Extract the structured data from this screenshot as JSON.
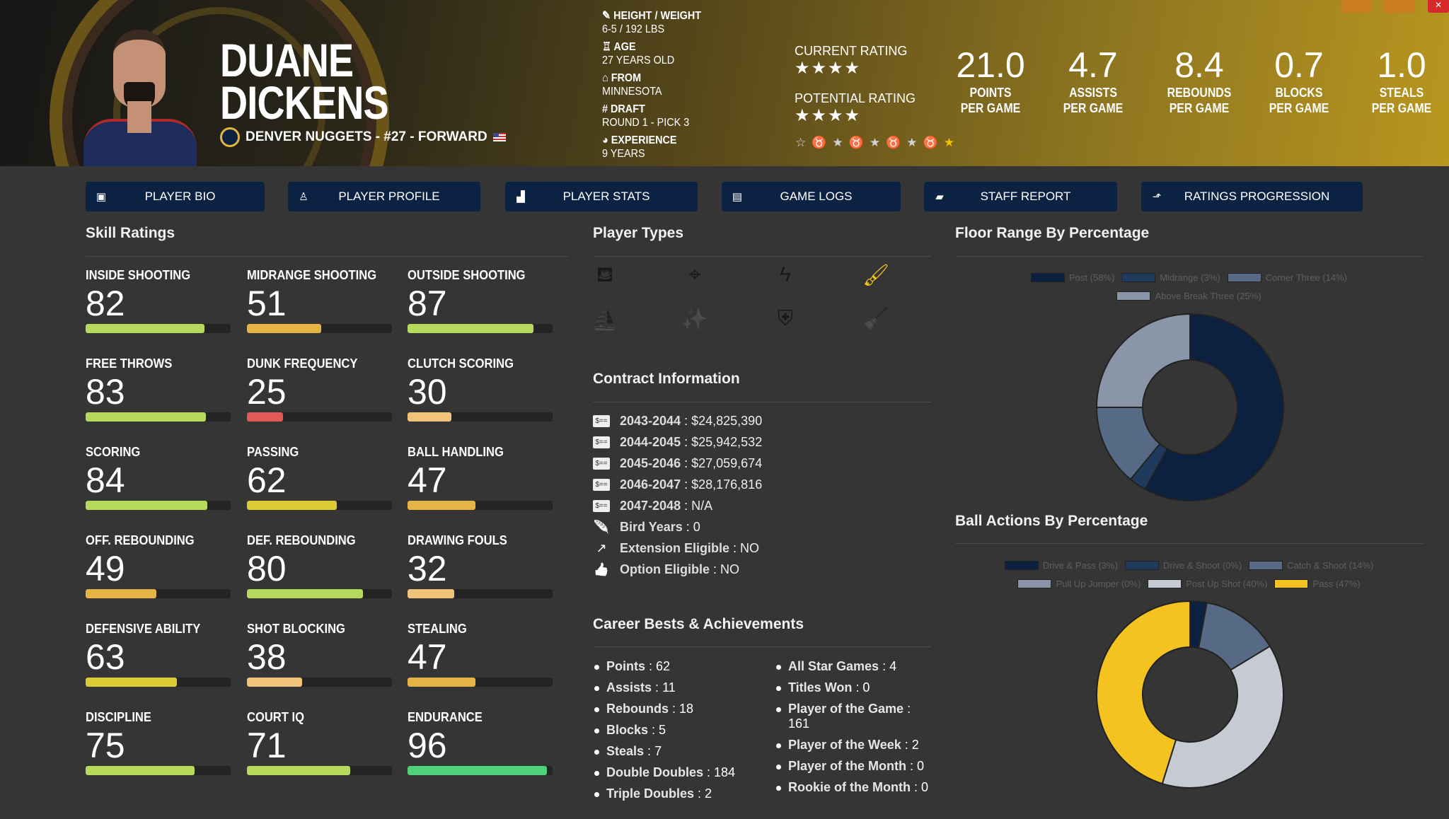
{
  "header": {
    "first_name": "DUANE",
    "last_name": "DICKENS",
    "team_line": "DENVER NUGGETS - #27 - FORWARD",
    "bio": [
      {
        "icon": "ruler-icon",
        "label": "HEIGHT / WEIGHT",
        "value": "6-5 / 192 LBS"
      },
      {
        "icon": "birthday-cake-icon",
        "label": "AGE",
        "value": "27 YEARS OLD"
      },
      {
        "icon": "school-icon",
        "label": "FROM",
        "value": "MINNESOTA"
      },
      {
        "icon": "hashtag-icon",
        "label": "DRAFT",
        "value": "ROUND 1 - PICK 3"
      },
      {
        "icon": "user-clock-icon",
        "label": "EXPERIENCE",
        "value": "9 YEARS"
      }
    ],
    "current_rating_label": "CURRENT RATING",
    "current_rating_stars": 4,
    "potential_rating_label": "POTENTIAL RATING",
    "potential_rating_stars": 4,
    "badges": [
      "star-outline",
      "medal-bronze",
      "star-silver",
      "medal-bronze",
      "star-silver",
      "medal-bronze",
      "star-silver",
      "medal-silver",
      "star-gold"
    ],
    "stats": [
      {
        "value": "21.0",
        "line1": "POINTS",
        "line2": "PER GAME"
      },
      {
        "value": "4.7",
        "line1": "ASSISTS",
        "line2": "PER GAME"
      },
      {
        "value": "8.4",
        "line1": "REBOUNDS",
        "line2": "PER GAME"
      },
      {
        "value": "0.7",
        "line1": "BLOCKS",
        "line2": "PER GAME"
      },
      {
        "value": "1.0",
        "line1": "STEALS",
        "line2": "PER GAME"
      }
    ]
  },
  "nav": [
    {
      "label": "PLAYER BIO",
      "icon": "id-badge-icon"
    },
    {
      "label": "PLAYER PROFILE",
      "icon": "reader-icon"
    },
    {
      "label": "PLAYER STATS",
      "icon": "bar-chart-icon"
    },
    {
      "label": "GAME LOGS",
      "icon": "clipboard-icon"
    },
    {
      "label": "STAFF REPORT",
      "icon": "comment-icon"
    },
    {
      "label": "RATINGS PROGRESSION",
      "icon": "line-chart-icon"
    }
  ],
  "skills": {
    "title": "Skill Ratings",
    "items": [
      {
        "name": "INSIDE SHOOTING",
        "value": 82
      },
      {
        "name": "MIDRANGE SHOOTING",
        "value": 51
      },
      {
        "name": "OUTSIDE SHOOTING",
        "value": 87
      },
      {
        "name": "FREE THROWS",
        "value": 83
      },
      {
        "name": "DUNK FREQUENCY",
        "value": 25
      },
      {
        "name": "CLUTCH SCORING",
        "value": 30
      },
      {
        "name": "SCORING",
        "value": 84
      },
      {
        "name": "PASSING",
        "value": 62
      },
      {
        "name": "BALL HANDLING",
        "value": 47
      },
      {
        "name": "OFF. REBOUNDING",
        "value": 49
      },
      {
        "name": "DEF. REBOUNDING",
        "value": 80
      },
      {
        "name": "DRAWING FOULS",
        "value": 32
      },
      {
        "name": "DEFENSIVE ABILITY",
        "value": 63
      },
      {
        "name": "SHOT BLOCKING",
        "value": 38
      },
      {
        "name": "STEALING",
        "value": 47
      },
      {
        "name": "DISCIPLINE",
        "value": 75
      },
      {
        "name": "COURT IQ",
        "value": 71
      },
      {
        "name": "ENDURANCE",
        "value": 96
      }
    ]
  },
  "player_types": {
    "title": "Player Types",
    "icons": [
      {
        "name": "paint-bucket-icon",
        "glyph": "⛾",
        "active": false
      },
      {
        "name": "crosshairs-icon",
        "glyph": "⌖",
        "active": false
      },
      {
        "name": "bolt-icon",
        "glyph": "ϟ",
        "active": false
      },
      {
        "name": "paint-roller-icon",
        "glyph": "🖌",
        "active": true
      },
      {
        "name": "sailboat-icon",
        "glyph": "⛵",
        "active": false
      },
      {
        "name": "magic-wand-icon",
        "glyph": "✨",
        "active": false
      },
      {
        "name": "shield-icon",
        "glyph": "⛨",
        "active": false
      },
      {
        "name": "broom-icon",
        "glyph": "🧹",
        "active": false
      }
    ]
  },
  "contract": {
    "title": "Contract Information",
    "rows": [
      {
        "icon": "money-check-icon",
        "label": "2043-2044",
        "value": "$24,825,390"
      },
      {
        "icon": "money-check-icon",
        "label": "2044-2045",
        "value": "$25,942,532"
      },
      {
        "icon": "money-check-icon",
        "label": "2045-2046",
        "value": "$27,059,674"
      },
      {
        "icon": "money-check-icon",
        "label": "2046-2047",
        "value": "$28,176,816"
      },
      {
        "icon": "money-check-icon",
        "label": "2047-2048",
        "value": "N/A"
      },
      {
        "icon": "feather-icon",
        "label": "Bird Years",
        "value": "0"
      },
      {
        "icon": "external-link-icon",
        "label": "Extension Eligible",
        "value": "NO"
      },
      {
        "icon": "thumbs-up-icon",
        "label": "Option Eligible",
        "value": "NO"
      }
    ]
  },
  "career": {
    "title": "Career Bests & Achievements",
    "left": [
      {
        "label": "Points",
        "value": "62"
      },
      {
        "label": "Assists",
        "value": "11"
      },
      {
        "label": "Rebounds",
        "value": "18"
      },
      {
        "label": "Blocks",
        "value": "5"
      },
      {
        "label": "Steals",
        "value": "7"
      },
      {
        "label": "Double Doubles",
        "value": "184"
      },
      {
        "label": "Triple Doubles",
        "value": "2"
      }
    ],
    "right": [
      {
        "label": "All Star Games",
        "value": "4"
      },
      {
        "label": "Titles Won",
        "value": "0"
      },
      {
        "label": "Player of the Game",
        "value": "161"
      },
      {
        "label": "Player of the Week",
        "value": "2"
      },
      {
        "label": "Player of the Month",
        "value": "0"
      },
      {
        "label": "Rookie of the Month",
        "value": "0"
      }
    ]
  },
  "chart_data": [
    {
      "type": "pie",
      "title": "Floor Range By Percentage",
      "legend_position": "top",
      "categories": [
        "Post (58%)",
        "Midrange (3%)",
        "Corner Three (14%)",
        "Above Break Three (25%)"
      ],
      "values": [
        58,
        3,
        14,
        25
      ],
      "colors": [
        "#0c2140",
        "#1f3a5c",
        "#566a85",
        "#8a96a8"
      ]
    },
    {
      "type": "pie",
      "title": "Ball Actions By Percentage",
      "legend_position": "top",
      "categories": [
        "Drive & Pass (3%)",
        "Drive & Shoot (0%)",
        "Catch & Shoot (14%)",
        "Pull Up Jumper (0%)",
        "Post Up Shot (40%)",
        "Pass (47%)"
      ],
      "values": [
        3,
        0,
        14,
        0,
        40,
        47
      ],
      "colors": [
        "#0c2140",
        "#1f3a5c",
        "#566a85",
        "#8a96a8",
        "#c5cad3",
        "#f5c31f"
      ]
    }
  ]
}
